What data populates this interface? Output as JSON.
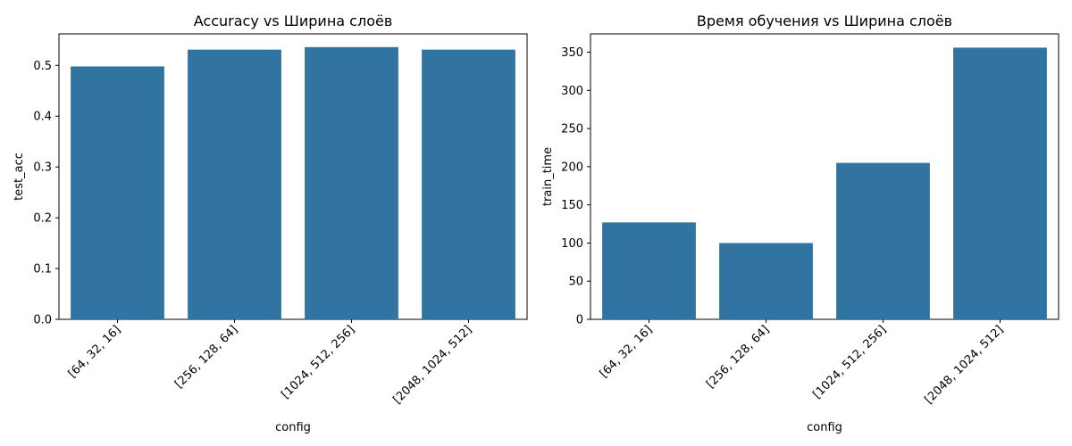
{
  "chart_data": [
    {
      "type": "bar",
      "title": "Accuracy vs Ширина слоёв",
      "xlabel": "config",
      "ylabel": "test_acc",
      "categories": [
        "[64, 32, 16]",
        "[256, 128, 64]",
        "[1024, 512, 256]",
        "[2048, 1024, 512]"
      ],
      "values": [
        0.498,
        0.531,
        0.536,
        0.531
      ],
      "ylim": [
        0,
        0.562
      ],
      "yticks": [
        0.0,
        0.1,
        0.2,
        0.3,
        0.4,
        0.5
      ],
      "ytick_labels": [
        "0.0",
        "0.1",
        "0.2",
        "0.3",
        "0.4",
        "0.5"
      ],
      "color": "#3274a1",
      "grid": false
    },
    {
      "type": "bar",
      "title": "Время обучения vs Ширина слоёв",
      "xlabel": "config",
      "ylabel": "train_time",
      "categories": [
        "[64, 32, 16]",
        "[256, 128, 64]",
        "[1024, 512, 256]",
        "[2048, 1024, 512]"
      ],
      "values": [
        127,
        100,
        205,
        356
      ],
      "ylim": [
        0,
        374
      ],
      "yticks": [
        0,
        50,
        100,
        150,
        200,
        250,
        300,
        350
      ],
      "ytick_labels": [
        "0",
        "50",
        "100",
        "150",
        "200",
        "250",
        "300",
        "350"
      ],
      "color": "#3274a1",
      "grid": false
    }
  ]
}
